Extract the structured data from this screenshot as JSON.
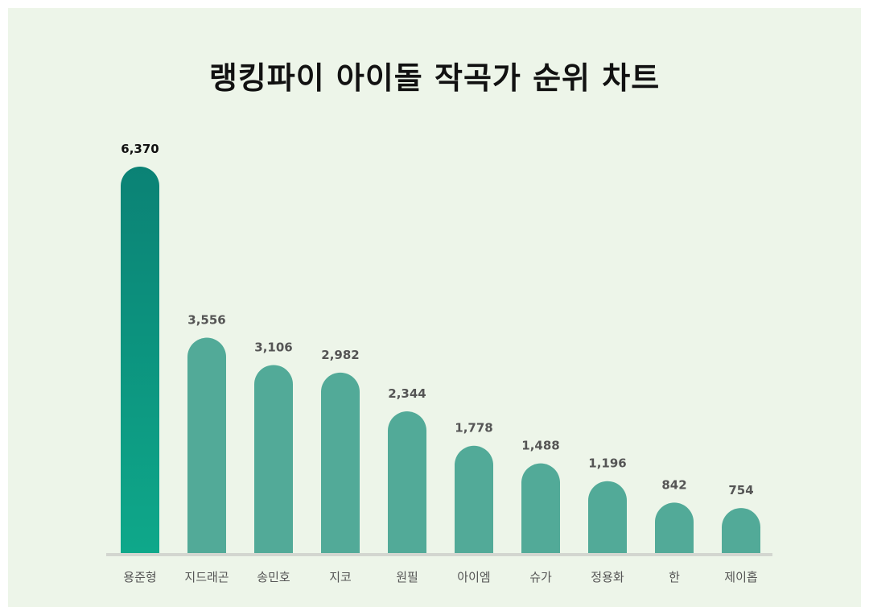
{
  "title": "랭킹파이 아이돌 작곡가 순위 차트",
  "colors": {
    "background": "#edf5e9",
    "bar": "#52aa98",
    "top_bar_start": "#0b8275",
    "top_bar_end": "#0ea88a",
    "baseline": "#d3d6d0"
  },
  "chart_data": {
    "type": "bar",
    "title": "랭킹파이 아이돌 작곡가 순위 차트",
    "categories": [
      "용준형",
      "지드래곤",
      "송민호",
      "지코",
      "원필",
      "아이엠",
      "슈가",
      "정용화",
      "한",
      "제이홉"
    ],
    "values": [
      6370,
      3556,
      3106,
      2982,
      2344,
      1778,
      1488,
      1196,
      842,
      754
    ],
    "value_labels": [
      "6,370",
      "3,556",
      "3,106",
      "2,982",
      "2,344",
      "1,778",
      "1,488",
      "1,196",
      "842",
      "754"
    ],
    "xlabel": "",
    "ylabel": "",
    "grid": false,
    "legend": "none"
  }
}
